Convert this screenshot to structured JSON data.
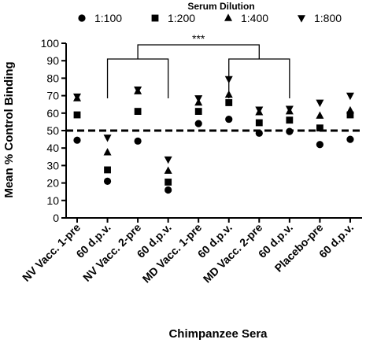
{
  "chart_data": {
    "type": "scatter",
    "title": "",
    "xlabel": "Chimpanzee Sera",
    "ylabel": "Mean % Control Binding",
    "ylim": [
      0,
      100
    ],
    "yticks": [
      0,
      10,
      20,
      30,
      40,
      50,
      60,
      70,
      80,
      90,
      100
    ],
    "reference_line": {
      "y": 50,
      "style": "dashed"
    },
    "legend": {
      "title": "Serum Dilution",
      "placement": "top"
    },
    "categories": [
      "NV Vacc. 1-pre",
      "60 d.p.v.",
      "NV Vacc. 2-pre",
      "60 d.p.v.",
      "MD Vacc. 1-pre",
      "60 d.p.v.",
      "MD Vacc. 2-pre",
      "60 d.p.v.",
      "Placebo-pre",
      "60 d.p.v."
    ],
    "series": [
      {
        "name": "1:100",
        "marker": "circle",
        "values": [
          44.5,
          21,
          44,
          16,
          54,
          56.5,
          48.5,
          49.5,
          42,
          45
        ]
      },
      {
        "name": "1:200",
        "marker": "square",
        "values": [
          59,
          27.5,
          61,
          20.5,
          61,
          66,
          54.5,
          56,
          51.5,
          59
        ]
      },
      {
        "name": "1:400",
        "marker": "triangle-up",
        "values": [
          68.5,
          37.5,
          72.5,
          27,
          66,
          70.5,
          60.5,
          61,
          58.5,
          61.5
        ]
      },
      {
        "name": "1:800",
        "marker": "triangle-down",
        "values": [
          69.5,
          46,
          73.5,
          33.5,
          68.5,
          79.5,
          62,
          62.5,
          66,
          70
        ]
      }
    ],
    "annotations": [
      {
        "text": "***",
        "brackets": [
          [
            1,
            3
          ],
          [
            5,
            7
          ]
        ]
      }
    ]
  }
}
